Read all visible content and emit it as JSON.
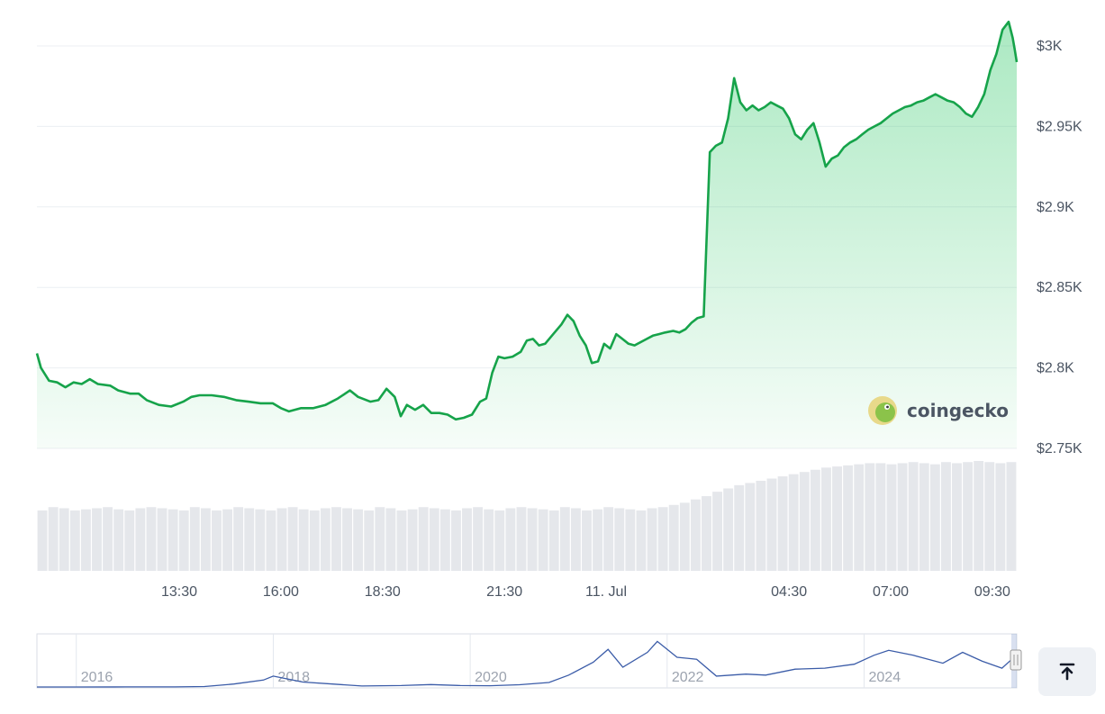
{
  "chart_data": [
    {
      "type": "area",
      "y_axis": {
        "ticks": [
          2750,
          2800,
          2850,
          2900,
          2950,
          3000
        ],
        "tick_labels": [
          "$2.75K",
          "$2.8K",
          "$2.85K",
          "$2.9K",
          "$2.95K",
          "$3K"
        ],
        "range": [
          2750,
          3000
        ],
        "position": "right"
      },
      "x_axis": {
        "tick_labels": [
          "13:30",
          "16:00",
          "18:30",
          "21:30",
          "11. Jul",
          "04:30",
          "07:00",
          "09:30"
        ],
        "tick_hours": [
          13.5,
          16,
          18.5,
          21.5,
          24,
          28.5,
          31,
          33.5
        ],
        "range_hours": [
          10,
          34.1
        ]
      },
      "grid": true,
      "series": [
        {
          "color": "#16a34a",
          "points": [
            [
              10.0,
              2809
            ],
            [
              10.1,
              2800
            ],
            [
              10.3,
              2792
            ],
            [
              10.5,
              2791
            ],
            [
              10.7,
              2788
            ],
            [
              10.9,
              2791
            ],
            [
              11.1,
              2790
            ],
            [
              11.3,
              2793
            ],
            [
              11.5,
              2790
            ],
            [
              11.8,
              2789
            ],
            [
              12.0,
              2786
            ],
            [
              12.3,
              2784
            ],
            [
              12.5,
              2784
            ],
            [
              12.7,
              2780
            ],
            [
              13.0,
              2777
            ],
            [
              13.3,
              2776
            ],
            [
              13.6,
              2779
            ],
            [
              13.8,
              2782
            ],
            [
              14.0,
              2783
            ],
            [
              14.3,
              2783
            ],
            [
              14.6,
              2782
            ],
            [
              14.9,
              2780
            ],
            [
              15.2,
              2779
            ],
            [
              15.5,
              2778
            ],
            [
              15.8,
              2778
            ],
            [
              16.0,
              2775
            ],
            [
              16.2,
              2773
            ],
            [
              16.5,
              2775
            ],
            [
              16.8,
              2775
            ],
            [
              17.1,
              2777
            ],
            [
              17.4,
              2781
            ],
            [
              17.7,
              2786
            ],
            [
              17.9,
              2782
            ],
            [
              18.2,
              2779
            ],
            [
              18.4,
              2780
            ],
            [
              18.6,
              2787
            ],
            [
              18.8,
              2782
            ],
            [
              18.95,
              2770
            ],
            [
              19.1,
              2777
            ],
            [
              19.3,
              2774
            ],
            [
              19.5,
              2777
            ],
            [
              19.7,
              2772
            ],
            [
              19.9,
              2772
            ],
            [
              20.1,
              2771
            ],
            [
              20.3,
              2768
            ],
            [
              20.5,
              2769
            ],
            [
              20.7,
              2771
            ],
            [
              20.9,
              2779
            ],
            [
              21.05,
              2781
            ],
            [
              21.2,
              2797
            ],
            [
              21.35,
              2807
            ],
            [
              21.5,
              2806
            ],
            [
              21.7,
              2807
            ],
            [
              21.9,
              2810
            ],
            [
              22.05,
              2817
            ],
            [
              22.2,
              2818
            ],
            [
              22.35,
              2814
            ],
            [
              22.5,
              2815
            ],
            [
              22.7,
              2821
            ],
            [
              22.9,
              2827
            ],
            [
              23.05,
              2833
            ],
            [
              23.2,
              2829
            ],
            [
              23.35,
              2820
            ],
            [
              23.5,
              2814
            ],
            [
              23.65,
              2803
            ],
            [
              23.8,
              2804
            ],
            [
              23.95,
              2815
            ],
            [
              24.1,
              2812
            ],
            [
              24.25,
              2821
            ],
            [
              24.4,
              2818
            ],
            [
              24.55,
              2815
            ],
            [
              24.7,
              2814
            ],
            [
              24.85,
              2816
            ],
            [
              25.0,
              2818
            ],
            [
              25.15,
              2820
            ],
            [
              25.3,
              2821
            ],
            [
              25.45,
              2822
            ],
            [
              25.65,
              2823
            ],
            [
              25.8,
              2822
            ],
            [
              25.95,
              2824
            ],
            [
              26.1,
              2828
            ],
            [
              26.25,
              2831
            ],
            [
              26.4,
              2832
            ],
            [
              26.55,
              2934
            ],
            [
              26.7,
              2938
            ],
            [
              26.85,
              2940
            ],
            [
              27.0,
              2955
            ],
            [
              27.15,
              2980
            ],
            [
              27.3,
              2965
            ],
            [
              27.45,
              2960
            ],
            [
              27.6,
              2963
            ],
            [
              27.75,
              2960
            ],
            [
              27.9,
              2962
            ],
            [
              28.05,
              2965
            ],
            [
              28.2,
              2963
            ],
            [
              28.35,
              2961
            ],
            [
              28.5,
              2955
            ],
            [
              28.65,
              2945
            ],
            [
              28.8,
              2942
            ],
            [
              28.95,
              2948
            ],
            [
              29.1,
              2952
            ],
            [
              29.25,
              2940
            ],
            [
              29.4,
              2925
            ],
            [
              29.55,
              2930
            ],
            [
              29.7,
              2932
            ],
            [
              29.85,
              2937
            ],
            [
              30.0,
              2940
            ],
            [
              30.15,
              2942
            ],
            [
              30.3,
              2945
            ],
            [
              30.45,
              2948
            ],
            [
              30.6,
              2950
            ],
            [
              30.75,
              2952
            ],
            [
              30.9,
              2955
            ],
            [
              31.05,
              2958
            ],
            [
              31.2,
              2960
            ],
            [
              31.35,
              2962
            ],
            [
              31.5,
              2963
            ],
            [
              31.65,
              2965
            ],
            [
              31.8,
              2966
            ],
            [
              31.95,
              2968
            ],
            [
              32.1,
              2970
            ],
            [
              32.25,
              2968
            ],
            [
              32.4,
              2966
            ],
            [
              32.55,
              2965
            ],
            [
              32.7,
              2962
            ],
            [
              32.85,
              2958
            ],
            [
              33.0,
              2956
            ],
            [
              33.15,
              2962
            ],
            [
              33.3,
              2970
            ],
            [
              33.45,
              2985
            ],
            [
              33.6,
              2995
            ],
            [
              33.75,
              3010
            ],
            [
              33.9,
              3015
            ],
            [
              34.0,
              3005
            ],
            [
              34.05,
              2998
            ],
            [
              34.1,
              2990
            ]
          ]
        }
      ],
      "volume": {
        "color": "#e5e7eb",
        "values": [
          0.55,
          0.58,
          0.57,
          0.55,
          0.56,
          0.57,
          0.58,
          0.56,
          0.55,
          0.57,
          0.58,
          0.57,
          0.56,
          0.55,
          0.58,
          0.57,
          0.55,
          0.56,
          0.58,
          0.57,
          0.56,
          0.55,
          0.57,
          0.58,
          0.56,
          0.55,
          0.57,
          0.58,
          0.57,
          0.56,
          0.55,
          0.58,
          0.57,
          0.55,
          0.56,
          0.58,
          0.57,
          0.56,
          0.55,
          0.57,
          0.58,
          0.56,
          0.55,
          0.57,
          0.58,
          0.57,
          0.56,
          0.55,
          0.58,
          0.57,
          0.55,
          0.56,
          0.58,
          0.57,
          0.56,
          0.55,
          0.57,
          0.58,
          0.6,
          0.62,
          0.65,
          0.68,
          0.72,
          0.75,
          0.78,
          0.8,
          0.82,
          0.84,
          0.86,
          0.88,
          0.9,
          0.92,
          0.94,
          0.95,
          0.96,
          0.97,
          0.98,
          0.98,
          0.97,
          0.98,
          0.99,
          0.98,
          0.97,
          0.99,
          0.98,
          0.99,
          1.0,
          0.99,
          0.98,
          0.99
        ]
      }
    },
    {
      "type": "line",
      "x_tick_labels": [
        "2016",
        "2018",
        "2020",
        "2022",
        "2024"
      ],
      "x_range_years": [
        2015.6,
        2025.55
      ],
      "y_range": [
        0,
        5000
      ],
      "series": [
        {
          "color": "#3b5ca8",
          "points": [
            [
              2015.6,
              1
            ],
            [
              2016.0,
              1
            ],
            [
              2016.5,
              10
            ],
            [
              2017.0,
              10
            ],
            [
              2017.3,
              50
            ],
            [
              2017.6,
              300
            ],
            [
              2017.9,
              700
            ],
            [
              2018.0,
              1100
            ],
            [
              2018.1,
              900
            ],
            [
              2018.3,
              500
            ],
            [
              2018.6,
              300
            ],
            [
              2018.9,
              100
            ],
            [
              2019.3,
              150
            ],
            [
              2019.6,
              250
            ],
            [
              2019.9,
              150
            ],
            [
              2020.2,
              130
            ],
            [
              2020.5,
              230
            ],
            [
              2020.8,
              450
            ],
            [
              2021.0,
              1200
            ],
            [
              2021.25,
              2500
            ],
            [
              2021.4,
              3800
            ],
            [
              2021.55,
              2000
            ],
            [
              2021.8,
              3500
            ],
            [
              2021.9,
              4600
            ],
            [
              2022.1,
              3000
            ],
            [
              2022.3,
              2800
            ],
            [
              2022.5,
              1100
            ],
            [
              2022.8,
              1300
            ],
            [
              2023.0,
              1200
            ],
            [
              2023.3,
              1800
            ],
            [
              2023.6,
              1900
            ],
            [
              2023.9,
              2300
            ],
            [
              2024.1,
              3200
            ],
            [
              2024.25,
              3700
            ],
            [
              2024.5,
              3200
            ],
            [
              2024.8,
              2400
            ],
            [
              2025.0,
              3500
            ],
            [
              2025.2,
              2600
            ],
            [
              2025.4,
              1900
            ],
            [
              2025.5,
              2800
            ],
            [
              2025.55,
              2900
            ]
          ]
        }
      ]
    }
  ],
  "watermark": {
    "text": "coingecko",
    "icon": "gecko-icon"
  },
  "controls": {
    "top_icon": "arrow-up-to-line-icon"
  }
}
